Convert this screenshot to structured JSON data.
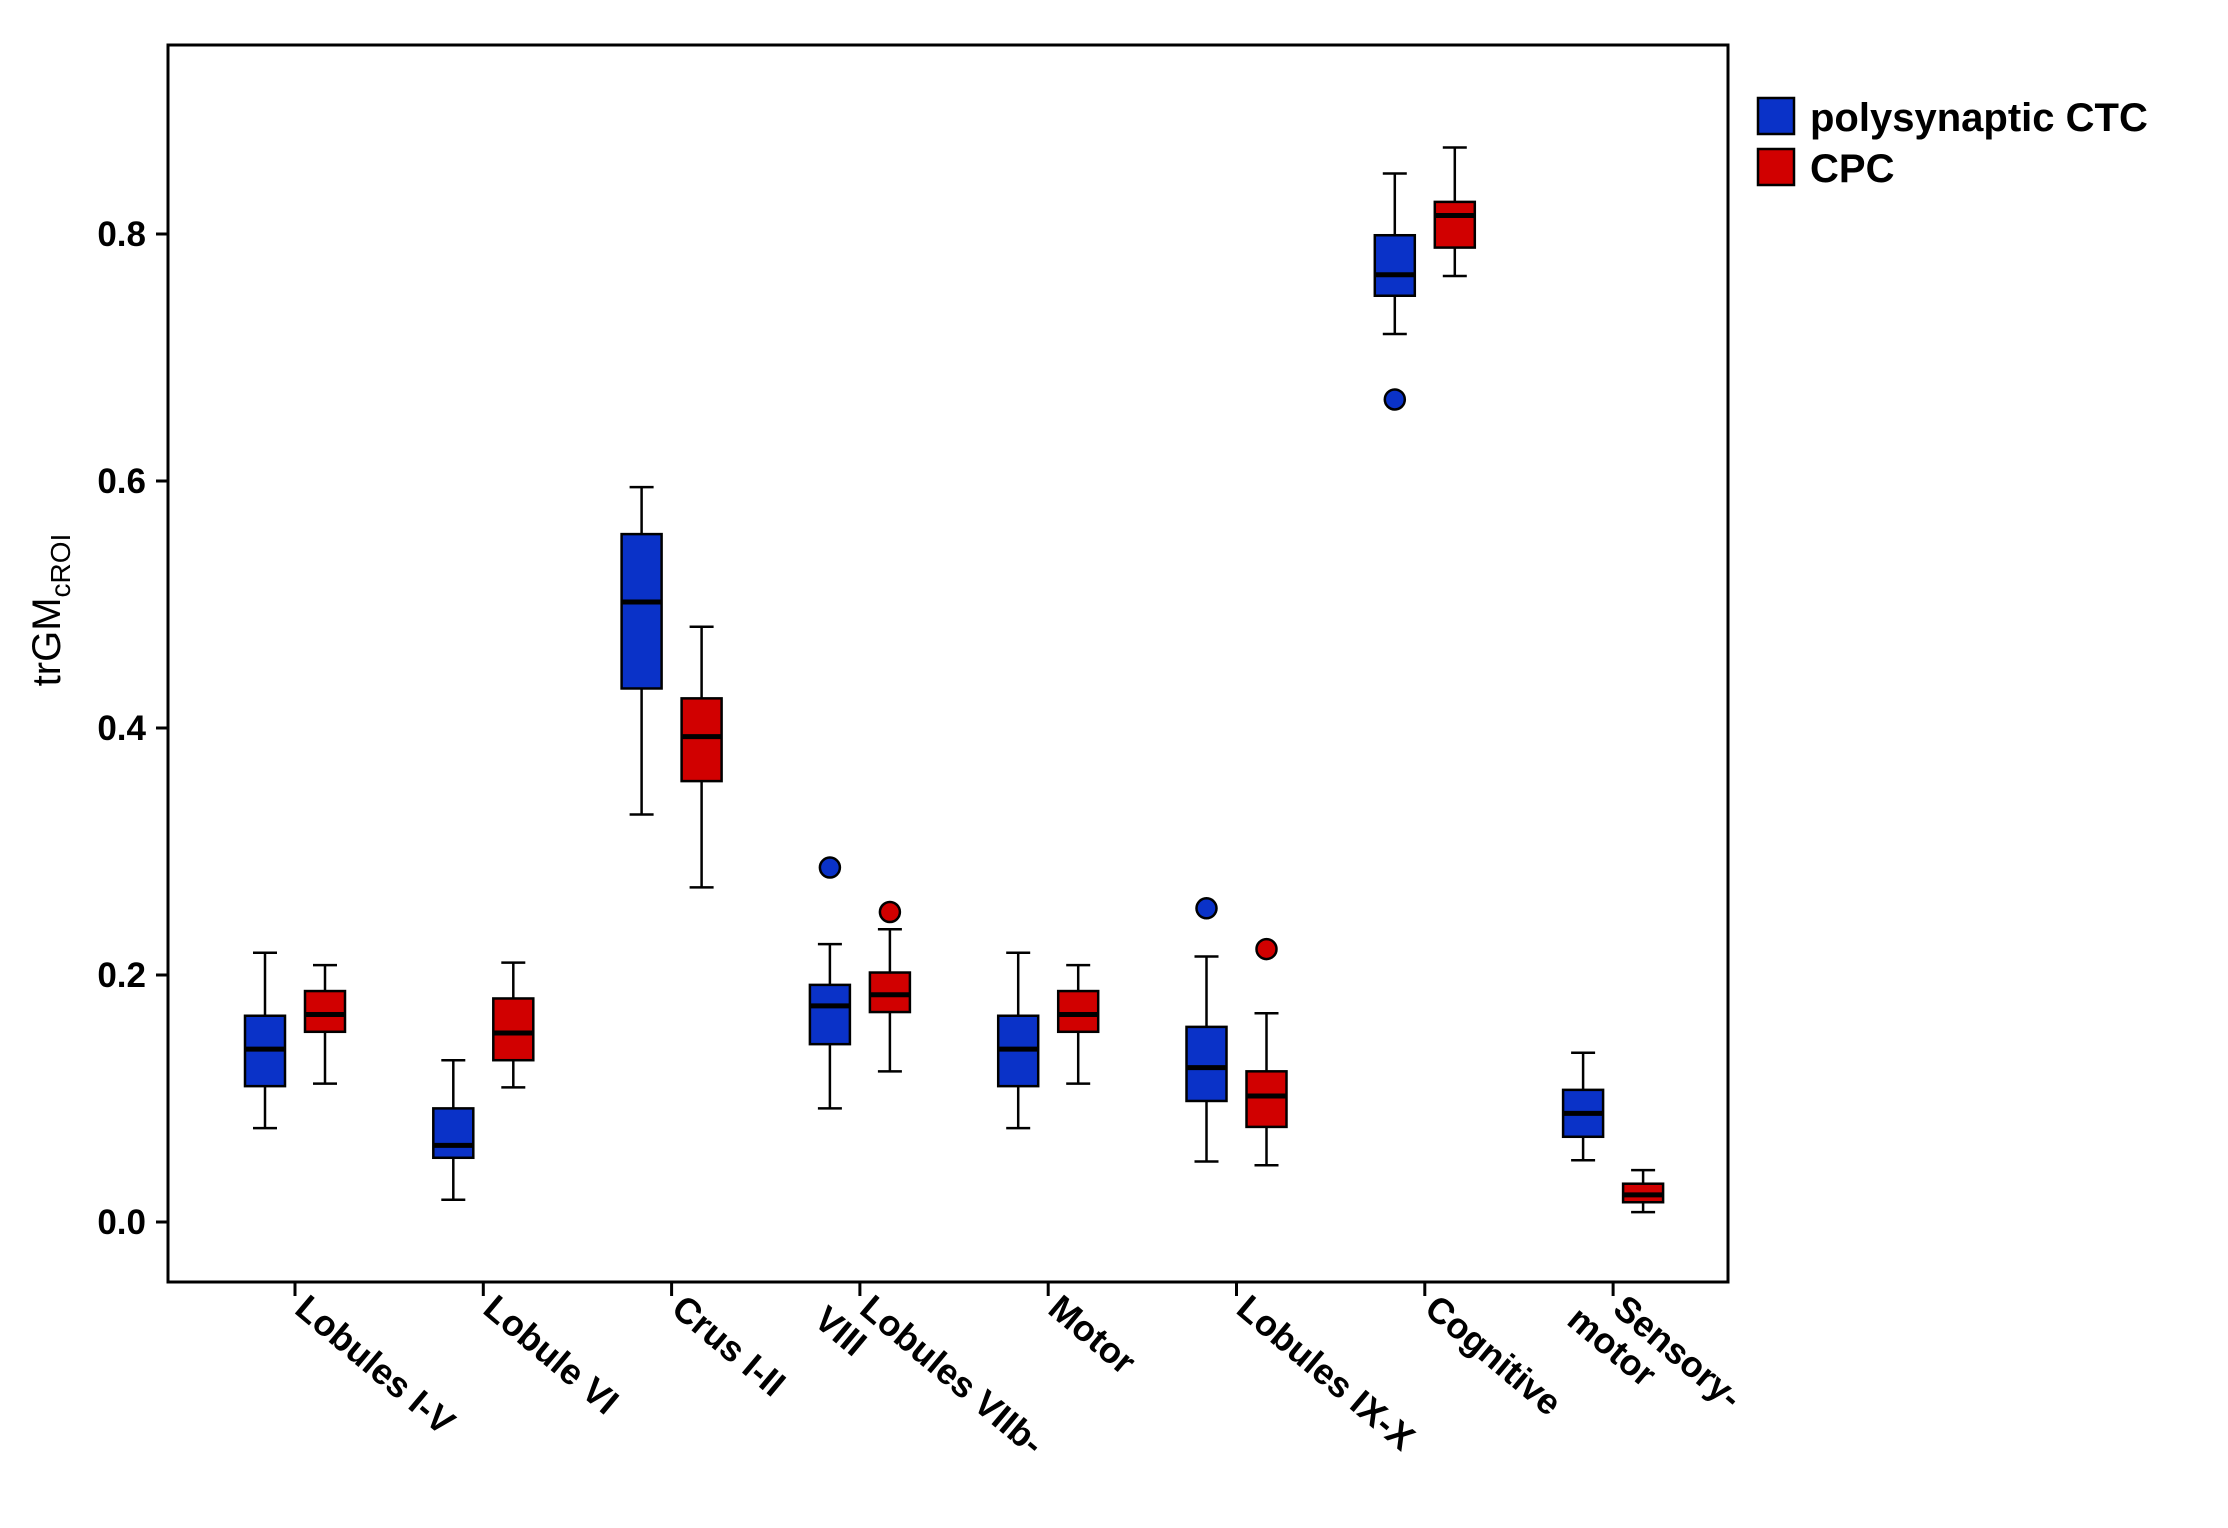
{
  "chart_data": {
    "type": "boxplot",
    "ylabel_main": "trGM",
    "ylabel_sub": "cROI",
    "ylim": [
      -0.05,
      0.95
    ],
    "yticks": [
      0.0,
      0.2,
      0.4,
      0.6,
      0.8
    ],
    "ytick_labels": [
      "0.0",
      "0.2",
      "0.4",
      "0.6",
      "0.8"
    ],
    "categories": [
      [
        "Lobules I-V"
      ],
      [
        "Lobule VI"
      ],
      [
        "Crus I-II"
      ],
      [
        "Lobules VIIb-",
        "VIII"
      ],
      [
        "Motor"
      ],
      [
        "Lobules IX-X"
      ],
      [
        "Cognitive"
      ],
      [
        "Sensory-",
        "motor"
      ]
    ],
    "legend": {
      "position": "top-right",
      "entries": [
        "polysynaptic CTC",
        "CPC"
      ]
    },
    "series": [
      {
        "name": "polysynaptic CTC",
        "color": "#0a32c8",
        "boxes": [
          {
            "min": 0.076,
            "q1": 0.11,
            "median": 0.14,
            "q3": 0.167,
            "max": 0.218,
            "outliers": []
          },
          {
            "min": 0.018,
            "q1": 0.052,
            "median": 0.062,
            "q3": 0.092,
            "max": 0.131,
            "outliers": []
          },
          {
            "min": 0.33,
            "q1": 0.432,
            "median": 0.502,
            "q3": 0.557,
            "max": 0.595,
            "outliers": []
          },
          {
            "min": 0.092,
            "q1": 0.144,
            "median": 0.175,
            "q3": 0.192,
            "max": 0.225,
            "outliers": [
              0.287
            ]
          },
          {
            "min": 0.076,
            "q1": 0.11,
            "median": 0.14,
            "q3": 0.167,
            "max": 0.218,
            "outliers": []
          },
          {
            "min": 0.049,
            "q1": 0.098,
            "median": 0.125,
            "q3": 0.158,
            "max": 0.215,
            "outliers": [
              0.254
            ]
          },
          {
            "min": 0.719,
            "q1": 0.75,
            "median": 0.767,
            "q3": 0.799,
            "max": 0.849,
            "outliers": [
              0.666
            ]
          },
          {
            "min": 0.05,
            "q1": 0.069,
            "median": 0.088,
            "q3": 0.107,
            "max": 0.137,
            "outliers": []
          }
        ]
      },
      {
        "name": "CPC",
        "color": "#d10000",
        "boxes": [
          {
            "min": 0.112,
            "q1": 0.154,
            "median": 0.168,
            "q3": 0.187,
            "max": 0.208,
            "outliers": []
          },
          {
            "min": 0.109,
            "q1": 0.131,
            "median": 0.153,
            "q3": 0.181,
            "max": 0.21,
            "outliers": []
          },
          {
            "min": 0.271,
            "q1": 0.357,
            "median": 0.393,
            "q3": 0.424,
            "max": 0.482,
            "outliers": []
          },
          {
            "min": 0.122,
            "q1": 0.17,
            "median": 0.184,
            "q3": 0.202,
            "max": 0.237,
            "outliers": [
              0.251
            ]
          },
          {
            "min": 0.112,
            "q1": 0.154,
            "median": 0.168,
            "q3": 0.187,
            "max": 0.208,
            "outliers": []
          },
          {
            "min": 0.046,
            "q1": 0.077,
            "median": 0.102,
            "q3": 0.122,
            "max": 0.169,
            "outliers": [
              0.221
            ]
          },
          {
            "min": 0.766,
            "q1": 0.789,
            "median": 0.815,
            "q3": 0.826,
            "max": 0.87,
            "outliers": []
          },
          {
            "min": 0.008,
            "q1": 0.016,
            "median": 0.022,
            "q3": 0.031,
            "max": 0.042,
            "outliers": []
          }
        ]
      }
    ]
  }
}
